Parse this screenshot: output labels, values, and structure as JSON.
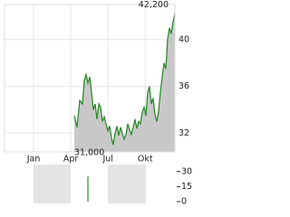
{
  "chart_data": [
    {
      "type": "area",
      "x": [
        3.28,
        3.5,
        3.72,
        3.94,
        4.09,
        4.23,
        4.38,
        4.53,
        4.67,
        4.82,
        4.96,
        5.11,
        5.26,
        5.4,
        5.55,
        5.69,
        5.84,
        5.99,
        6.13,
        6.28,
        6.42,
        6.57,
        6.72,
        6.86,
        7.01,
        7.15,
        7.3,
        7.45,
        7.59,
        7.74,
        7.88,
        8.03,
        8.18,
        8.32,
        8.47,
        8.61,
        8.76,
        8.91,
        9.05,
        9.2,
        9.34,
        9.49,
        9.64,
        9.78,
        9.93,
        10.07,
        10.22,
        10.36,
        10.51,
        10.66,
        10.8,
        10.95,
        11.09,
        11.24,
        11.39
      ],
      "series": [
        {
          "color": "#2e8b2e",
          "values": [
            33.5,
            32.5,
            34.8,
            34.5,
            36.5,
            37.0,
            36.3,
            36.8,
            35.5,
            34.0,
            34.5,
            33.2,
            34.5,
            34.2,
            33.0,
            33.4,
            32.8,
            32.2,
            32.6,
            31.6,
            31.0,
            32.0,
            32.6,
            31.8,
            32.5,
            32.0,
            31.5,
            31.9,
            32.8,
            32.3,
            31.9,
            32.5,
            33.2,
            32.4,
            33.0,
            32.8,
            33.8,
            34.2,
            33.5,
            35.5,
            36.0,
            34.5,
            35.0,
            33.6,
            33.0,
            33.8,
            35.5,
            36.8,
            38.0,
            37.5,
            40.0,
            41.0,
            40.5,
            41.5,
            42.2
          ]
        }
      ],
      "xlim": [
        -2.34,
        11.39
      ],
      "xticks": [
        {
          "value": 0,
          "label": "Jan"
        },
        {
          "value": 3,
          "label": "Apr"
        },
        {
          "value": 6,
          "label": "Jul"
        },
        {
          "value": 9,
          "label": "Okt"
        }
      ],
      "ylim": [
        30.4,
        43
      ],
      "yticks": [
        32,
        36,
        40
      ],
      "grid": true,
      "annotations": [
        {
          "label": "42,200",
          "value": 42.2
        },
        {
          "label": "31,000",
          "value": 31.0
        }
      ]
    },
    {
      "type": "bar",
      "x": [
        4.38
      ],
      "values": [
        25
      ],
      "color": "#2e8b2e",
      "ylim": [
        0,
        37
      ],
      "yticks": [
        30,
        15,
        0
      ]
    }
  ]
}
